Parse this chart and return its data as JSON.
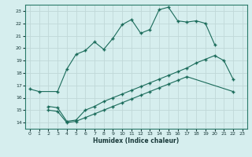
{
  "xlabel": "Humidex (Indice chaleur)",
  "xlim": [
    -0.5,
    23.5
  ],
  "ylim": [
    13.5,
    23.5
  ],
  "xticks": [
    0,
    1,
    2,
    3,
    4,
    5,
    6,
    7,
    8,
    9,
    10,
    11,
    12,
    13,
    14,
    15,
    16,
    17,
    18,
    19,
    20,
    21,
    22,
    23
  ],
  "yticks": [
    14,
    15,
    16,
    17,
    18,
    19,
    20,
    21,
    22,
    23
  ],
  "bg_color": "#d6eeee",
  "line_color": "#1a6b5a",
  "grid_color": "#c0d8d8",
  "line1_x": [
    0,
    1,
    3,
    4,
    5,
    6,
    7,
    8,
    9,
    10,
    11,
    12,
    13,
    14,
    15,
    16,
    17,
    18,
    19,
    20
  ],
  "line1_y": [
    16.7,
    16.5,
    16.5,
    18.3,
    19.5,
    19.8,
    20.5,
    19.9,
    20.8,
    21.9,
    22.3,
    21.2,
    21.5,
    23.1,
    23.3,
    22.2,
    22.1,
    22.2,
    22.0,
    20.3
  ],
  "line2_x": [
    2,
    3,
    4,
    5,
    6,
    7,
    8,
    9,
    10,
    11,
    12,
    13,
    14,
    15,
    16,
    17,
    18,
    19,
    20,
    21,
    22
  ],
  "line2_y": [
    15.3,
    15.2,
    14.1,
    14.2,
    15.0,
    15.3,
    15.7,
    16.0,
    16.3,
    16.6,
    16.9,
    17.2,
    17.5,
    17.8,
    18.1,
    18.4,
    18.8,
    19.1,
    19.4,
    19.0,
    17.5
  ],
  "line3_x": [
    2,
    3,
    4,
    5,
    6,
    7,
    8,
    9,
    10,
    11,
    12,
    13,
    14,
    15,
    16,
    17,
    22
  ],
  "line3_y": [
    15.0,
    14.9,
    14.0,
    14.1,
    14.4,
    14.7,
    15.0,
    15.3,
    15.6,
    15.9,
    16.2,
    16.5,
    16.8,
    17.1,
    17.4,
    17.7,
    16.5
  ]
}
